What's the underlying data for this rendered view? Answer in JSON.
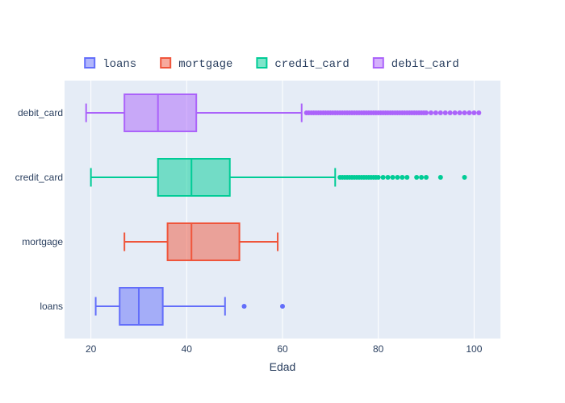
{
  "chart_data": {
    "type": "box",
    "orientation": "horizontal",
    "xlabel": "Edad",
    "ylabel": "",
    "xlim": [
      14.5,
      105.5
    ],
    "xticks": [
      20,
      40,
      60,
      80,
      100
    ],
    "grid": true,
    "legend_position": "top",
    "plot_background": "#e5ecf6",
    "series": [
      {
        "name": "loans",
        "color": "#636efa",
        "whisker_low": 21,
        "q1": 26,
        "median": 30,
        "q3": 35,
        "whisker_high": 48,
        "outliers": [
          52,
          60
        ]
      },
      {
        "name": "mortgage",
        "color": "#ef553b",
        "whisker_low": 27,
        "q1": 36,
        "median": 41,
        "q3": 51,
        "whisker_high": 59,
        "outliers": []
      },
      {
        "name": "credit_card",
        "color": "#00cc96",
        "whisker_low": 20,
        "q1": 34,
        "median": 41,
        "q3": 49,
        "whisker_high": 71,
        "outliers": [
          72,
          72.5,
          73,
          73.5,
          74,
          74.5,
          75,
          75.5,
          76,
          76.5,
          77,
          77.5,
          78,
          78.5,
          79,
          79.5,
          80,
          81,
          82,
          83,
          84,
          85,
          86,
          88,
          89,
          90,
          93,
          98
        ]
      },
      {
        "name": "debit_card",
        "color": "#ab63fa",
        "whisker_low": 19,
        "q1": 27,
        "median": 34,
        "q3": 42,
        "whisker_high": 64,
        "outliers": [
          65,
          65.5,
          66,
          66.5,
          67,
          67.5,
          68,
          68.5,
          69,
          69.5,
          70,
          70.5,
          71,
          71.5,
          72,
          72.5,
          73,
          73.5,
          74,
          74.5,
          75,
          75.5,
          76,
          76.5,
          77,
          77.5,
          78,
          78.5,
          79,
          79.5,
          80,
          80.5,
          81,
          81.5,
          82,
          82.5,
          83,
          83.5,
          84,
          84.5,
          85,
          85.5,
          86,
          86.5,
          87,
          87.5,
          88,
          88.5,
          89,
          89.5,
          90,
          91,
          92,
          93,
          94,
          95,
          96,
          97,
          98,
          99,
          100,
          101
        ]
      }
    ]
  }
}
